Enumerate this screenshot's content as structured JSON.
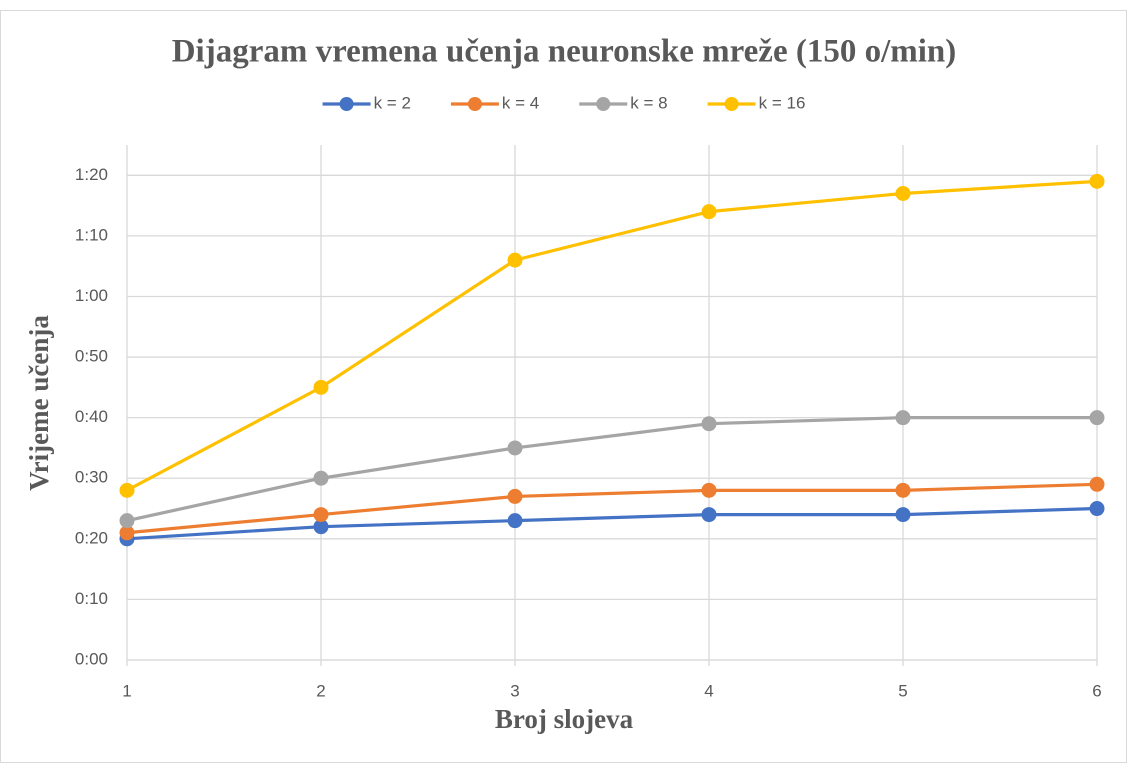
{
  "chart_data": {
    "type": "line",
    "title": "Dijagram vremena učenja neuronske mreže (150 o/min)",
    "x_label": "Broj slojeva",
    "y_label": "Vrijeme učenja",
    "x": [
      1,
      2,
      3,
      4,
      5,
      6
    ],
    "xlim": [
      1,
      6
    ],
    "xticks": [
      1,
      2,
      3,
      4,
      5,
      6
    ],
    "ylim": [
      0,
      85
    ],
    "yticks": [
      {
        "value": 0,
        "label": "0:00"
      },
      {
        "value": 10,
        "label": "0:10"
      },
      {
        "value": 20,
        "label": "0:20"
      },
      {
        "value": 30,
        "label": "0:30"
      },
      {
        "value": 40,
        "label": "0:40"
      },
      {
        "value": 50,
        "label": "0:50"
      },
      {
        "value": 60,
        "label": "1:00"
      },
      {
        "value": 70,
        "label": "1:10"
      },
      {
        "value": 80,
        "label": "1:20"
      }
    ],
    "grid": true,
    "legend": "top",
    "series": [
      {
        "name": "k = 2",
        "color": "#4472c4",
        "values": [
          20,
          22,
          23,
          24,
          24,
          25
        ]
      },
      {
        "name": "k = 4",
        "color": "#ed7d31",
        "values": [
          21,
          24,
          27,
          28,
          28,
          29
        ]
      },
      {
        "name": "k = 8",
        "color": "#a5a5a5",
        "values": [
          23,
          30,
          35,
          39,
          40,
          40
        ]
      },
      {
        "name": "k = 16",
        "color": "#ffc000",
        "values": [
          28,
          45,
          66,
          74,
          77,
          79
        ]
      }
    ]
  }
}
